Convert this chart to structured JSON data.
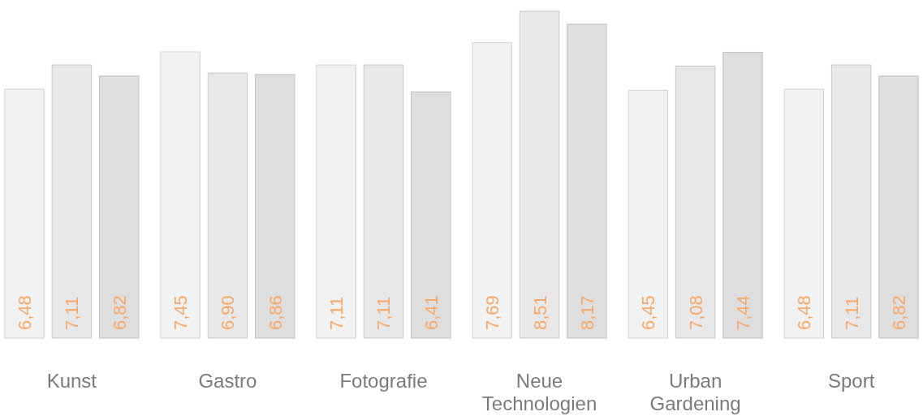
{
  "chart_data": {
    "type": "bar",
    "categories": [
      "Kunst",
      "Gastro",
      "Fotografie",
      "Neue Technologien",
      "Urban Gardening",
      "Sport"
    ],
    "series": [
      {
        "color": "#f2f2f2",
        "values": [
          6.48,
          7.45,
          7.11,
          7.69,
          6.45,
          6.48
        ],
        "value_labels": [
          "6,48",
          "7,45",
          "7,11",
          "7,69",
          "6,45",
          "6,48"
        ]
      },
      {
        "color": "#e8e8e8",
        "values": [
          7.11,
          6.9,
          7.11,
          8.51,
          7.08,
          7.11
        ],
        "value_labels": [
          "7,11",
          "6,90",
          "7,11",
          "8,51",
          "7,08",
          "7,11"
        ]
      },
      {
        "color": "#dedede",
        "values": [
          6.82,
          6.86,
          6.41,
          8.17,
          7.44,
          6.82
        ],
        "value_labels": [
          "6,82",
          "6,86",
          "6,41",
          "8,17",
          "7,44",
          "6,82"
        ]
      }
    ],
    "ylim": [
      0,
      8.8
    ]
  }
}
